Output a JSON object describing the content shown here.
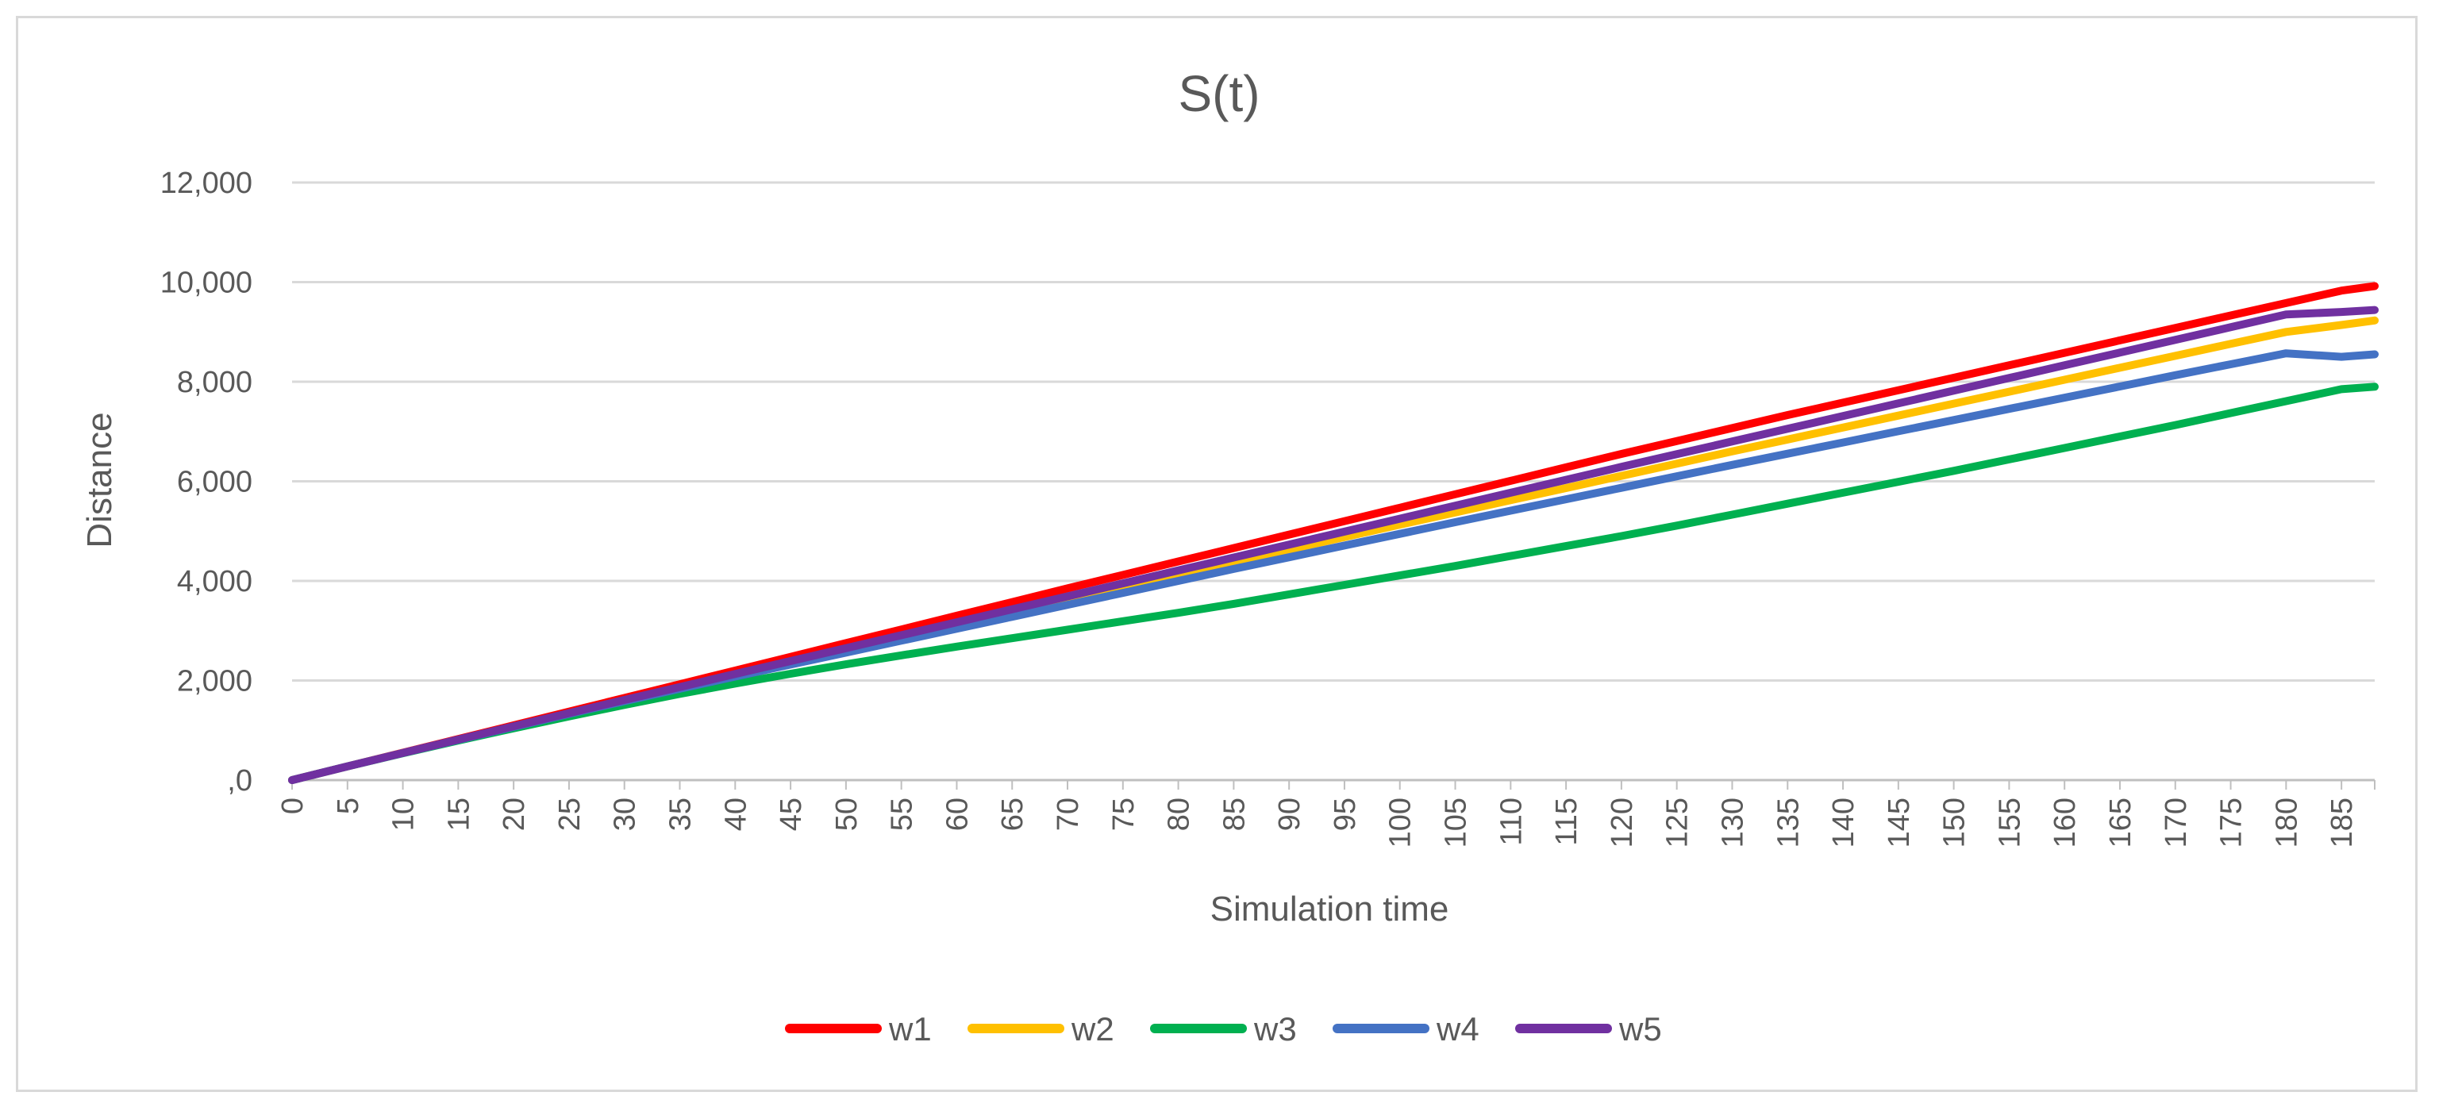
{
  "chart_data": {
    "type": "line",
    "title": "S(t)",
    "xlabel": "Simulation time",
    "ylabel": "Distance",
    "x": [
      0,
      5,
      10,
      15,
      20,
      25,
      30,
      35,
      40,
      45,
      50,
      55,
      60,
      65,
      70,
      75,
      80,
      85,
      90,
      95,
      100,
      105,
      110,
      115,
      120,
      125,
      130,
      135,
      140,
      145,
      150,
      155,
      160,
      165,
      170,
      175,
      180,
      185,
      188
    ],
    "x_tick_labels": [
      "0",
      "5",
      "10",
      "15",
      "20",
      "25",
      "30",
      "35",
      "40",
      "45",
      "50",
      "55",
      "60",
      "65",
      "70",
      "75",
      "80",
      "85",
      "90",
      "95",
      "100",
      "105",
      "110",
      "115",
      "120",
      "125",
      "130",
      "135",
      "140",
      "145",
      "150",
      "155",
      "160",
      "165",
      "170",
      "175",
      "180",
      "185"
    ],
    "xlim": [
      0,
      188
    ],
    "ylim": [
      0,
      12000
    ],
    "y_ticks": [
      0,
      2000,
      4000,
      6000,
      8000,
      10000,
      12000
    ],
    "y_tick_labels": [
      ",0",
      "2,000",
      "4,000",
      "6,000",
      "8,000",
      "10,000",
      "12,000"
    ],
    "grid": true,
    "legend_position": "bottom",
    "series": [
      {
        "name": "w1",
        "color": "#ff0000",
        "values": [
          0,
          275,
          550,
          825,
          1100,
          1375,
          1650,
          1925,
          2200,
          2475,
          2750,
          3025,
          3300,
          3575,
          3850,
          4120,
          4390,
          4660,
          4930,
          5200,
          5470,
          5740,
          6010,
          6280,
          6550,
          6810,
          7070,
          7330,
          7580,
          7830,
          8080,
          8330,
          8580,
          8830,
          9080,
          9330,
          9580,
          9830,
          9920
        ]
      },
      {
        "name": "w2",
        "color": "#ffc000",
        "values": [
          0,
          275,
          545,
          810,
          1070,
          1330,
          1590,
          1850,
          2110,
          2370,
          2630,
          2880,
          3130,
          3380,
          3630,
          3880,
          4130,
          4380,
          4630,
          4880,
          5130,
          5375,
          5620,
          5865,
          6110,
          6355,
          6600,
          6840,
          7080,
          7320,
          7560,
          7800,
          8040,
          8280,
          8520,
          8760,
          9000,
          9140,
          9230
        ]
      },
      {
        "name": "w3",
        "color": "#00b050",
        "values": [
          0,
          275,
          540,
          795,
          1040,
          1280,
          1510,
          1730,
          1940,
          2135,
          2325,
          2505,
          2680,
          2850,
          3020,
          3190,
          3360,
          3540,
          3730,
          3920,
          4110,
          4300,
          4500,
          4700,
          4900,
          5110,
          5330,
          5550,
          5770,
          5990,
          6210,
          6440,
          6670,
          6900,
          7130,
          7370,
          7610,
          7850,
          7900
        ]
      },
      {
        "name": "w4",
        "color": "#4472c4",
        "values": [
          0,
          275,
          545,
          810,
          1070,
          1330,
          1585,
          1835,
          2080,
          2320,
          2560,
          2800,
          3040,
          3280,
          3520,
          3760,
          4000,
          4240,
          4475,
          4710,
          4945,
          5180,
          5410,
          5640,
          5870,
          6100,
          6330,
          6555,
          6780,
          7005,
          7230,
          7455,
          7680,
          7905,
          8130,
          8350,
          8570,
          8500,
          8550
        ]
      },
      {
        "name": "w5",
        "color": "#7030a0",
        "values": [
          0,
          275,
          545,
          815,
          1080,
          1345,
          1610,
          1870,
          2130,
          2390,
          2650,
          2910,
          3170,
          3430,
          3690,
          3950,
          4210,
          4470,
          4730,
          4990,
          5250,
          5510,
          5770,
          6030,
          6290,
          6545,
          6800,
          7055,
          7310,
          7565,
          7820,
          8075,
          8330,
          8585,
          8840,
          9095,
          9350,
          9400,
          9440
        ]
      }
    ]
  }
}
